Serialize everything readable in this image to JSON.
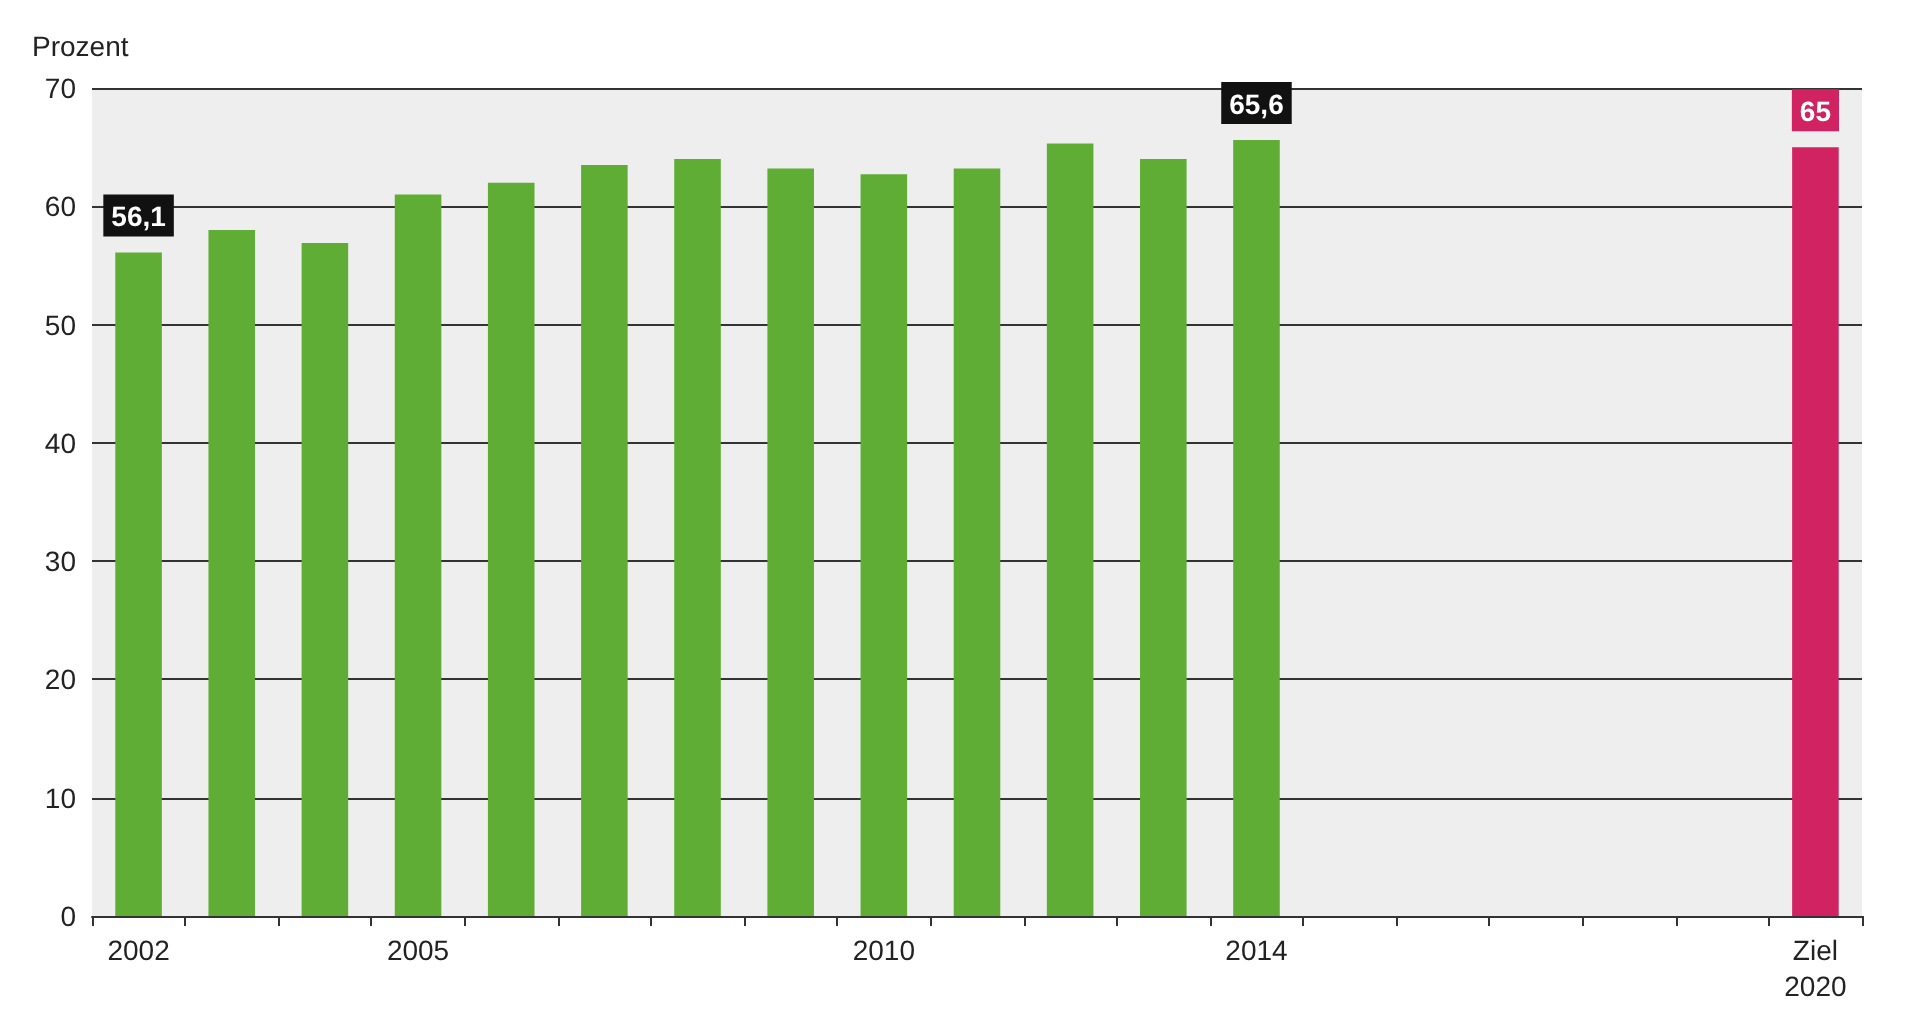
{
  "chart_data": {
    "type": "bar",
    "ylabel": "Prozent",
    "categories": [
      "2002",
      null,
      null,
      "2005",
      null,
      null,
      null,
      null,
      "2010",
      null,
      null,
      null,
      "2014",
      null,
      null,
      null,
      null,
      null,
      "Ziel\n2020"
    ],
    "values": [
      56.1,
      58.0,
      56.9,
      61.0,
      62.0,
      63.5,
      64.0,
      63.2,
      62.7,
      63.2,
      65.3,
      64.0,
      65.6,
      null,
      null,
      null,
      null,
      null,
      65
    ],
    "colors": [
      "#5fad35",
      "#5fad35",
      "#5fad35",
      "#5fad35",
      "#5fad35",
      "#5fad35",
      "#5fad35",
      "#5fad35",
      "#5fad35",
      "#5fad35",
      "#5fad35",
      "#5fad35",
      "#5fad35",
      "#5fad35",
      "#5fad35",
      "#5fad35",
      "#5fad35",
      "#5fad35",
      "#d12262"
    ],
    "value_labels": [
      "56,1",
      null,
      null,
      null,
      null,
      null,
      null,
      null,
      null,
      null,
      null,
      null,
      "65,6",
      null,
      null,
      null,
      null,
      null,
      "65"
    ],
    "ylim": [
      0,
      70
    ],
    "yticks": [
      0,
      10,
      20,
      30,
      40,
      50,
      60,
      70
    ],
    "grid": "y"
  }
}
